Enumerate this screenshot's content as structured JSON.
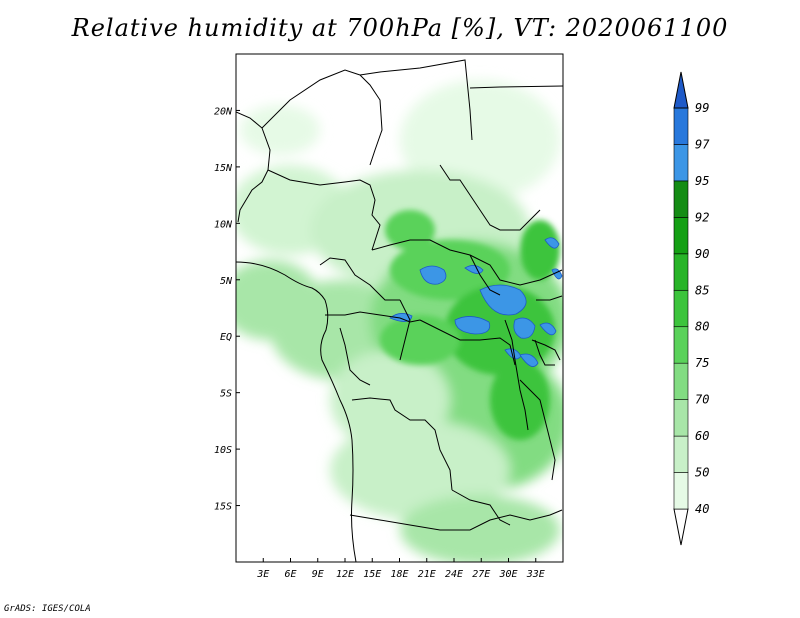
{
  "title": "Relative humidity at 700hPa [%], VT: 2020061100",
  "credit": "GrADS: IGES/COLA",
  "map": {
    "lon_range": [
      0,
      36
    ],
    "lat_range": [
      -20,
      25
    ],
    "x_ticks": [
      "3E",
      "6E",
      "9E",
      "12E",
      "15E",
      "18E",
      "21E",
      "24E",
      "27E",
      "30E",
      "33E"
    ],
    "x_tick_values": [
      3,
      6,
      9,
      12,
      15,
      18,
      21,
      24,
      27,
      30,
      33
    ],
    "y_ticks": [
      "20N",
      "15N",
      "10N",
      "5N",
      "EQ",
      "5S",
      "10S",
      "15S"
    ],
    "y_tick_values": [
      20,
      15,
      10,
      5,
      0,
      -5,
      -10,
      -15
    ]
  },
  "colorbar": {
    "labels": [
      "40",
      "50",
      "60",
      "70",
      "75",
      "80",
      "85",
      "90",
      "92",
      "95",
      "97",
      "99"
    ],
    "colors": [
      "#ffffff",
      "#e6fae6",
      "#c8f0c8",
      "#a8e6a8",
      "#82dc82",
      "#5ad25a",
      "#3cc43c",
      "#28b428",
      "#14a014",
      "#148c14",
      "#3c96e6",
      "#2878dc",
      "#1e5ac8"
    ]
  }
}
